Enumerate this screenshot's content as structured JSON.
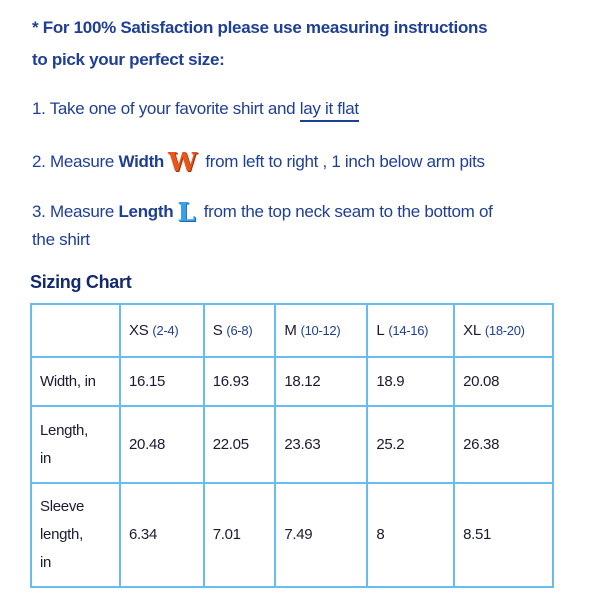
{
  "intro": {
    "line1": "* For 100% Satisfaction please use measuring instructions",
    "line2": "to pick your perfect size:"
  },
  "steps": [
    {
      "prefix": "1. Take one of your favorite shirt and ",
      "link": "lay it flat"
    },
    {
      "prefix": "2. Measure ",
      "bold": "Width",
      "glyph": "W",
      "suffix": " from left to right , 1 inch below arm pits"
    },
    {
      "prefix": "3. Measure ",
      "bold": "Length",
      "glyph": "L",
      "suffix": " from the top neck seam to the bottom of",
      "cont": "the shirt"
    }
  ],
  "sizing_title": "Sizing Chart",
  "table": {
    "headers": [
      {
        "size": "XS",
        "range": "(2-4)"
      },
      {
        "size": "S",
        "range": "(6-8)"
      },
      {
        "size": "M",
        "range": "(10-12)"
      },
      {
        "size": "L",
        "range": "(14-16)"
      },
      {
        "size": "XL",
        "range": "(18-20)"
      }
    ],
    "rows": [
      {
        "label": [
          "Width, in"
        ],
        "values": [
          "16.15",
          "16.93",
          "18.12",
          "18.9",
          "20.08"
        ]
      },
      {
        "label": [
          "Length,",
          "in"
        ],
        "values": [
          "20.48",
          "22.05",
          "23.63",
          "25.2",
          "26.38"
        ]
      },
      {
        "label": [
          "Sleeve",
          "length,",
          "in"
        ],
        "values": [
          "6.34",
          "7.01",
          "7.49",
          "8",
          "8.51"
        ]
      }
    ]
  },
  "colors": {
    "text": "#1f3f95",
    "border": "#67bdf2",
    "width_glyph": "#e8561a",
    "length_glyph": "#3aa0e8"
  }
}
